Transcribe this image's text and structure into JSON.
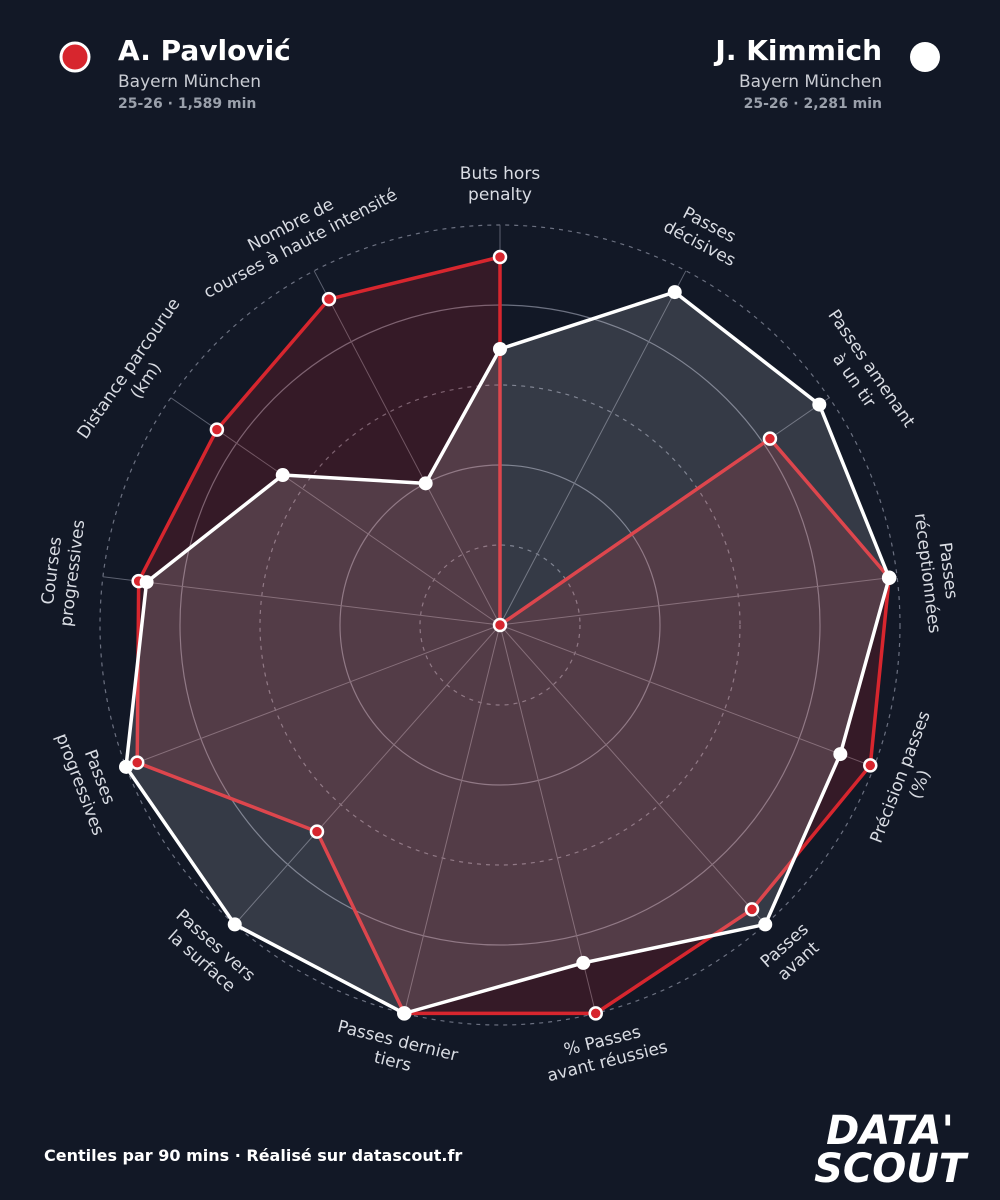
{
  "chart_data": {
    "type": "radar",
    "categories": [
      "Buts hors\npenalty",
      "Passes\ndécisives",
      "Passes amenant\nà un tir",
      "Passes\nréceptionnées",
      "Précision passes\n(%)",
      "Passes\navant",
      "% Passes\navant réussies",
      "Passes dernier\ntiers",
      "Passes vers\nla surface",
      "Passes\nprogressives",
      "Courses\nprogressives",
      "Distance parcourue\n(km)",
      "Nombre de\ncourses à haute intensité"
    ],
    "rlim": [
      0,
      100
    ],
    "rticks": [
      20,
      40,
      60,
      80,
      100
    ],
    "series": [
      {
        "name": "A. Pavlović",
        "team": "Bayern München",
        "info": "25-26 · 1,589 min",
        "color": "#d7262e",
        "values": [
          92,
          0,
          82,
          98,
          99,
          95,
          100,
          100,
          69,
          97,
          91,
          86,
          92
        ]
      },
      {
        "name": "J. Kimmich",
        "team": "Bayern München",
        "info": "25-26 · 2,281 min",
        "color": "#ffffff",
        "values": [
          69,
          94,
          97,
          98,
          91,
          100,
          87,
          100,
          100,
          100,
          89,
          66,
          40
        ]
      }
    ],
    "footer": "Centiles par 90 mins · Réalisé sur datascout.fr",
    "logo": [
      "DATA'",
      "SCOUT"
    ]
  }
}
